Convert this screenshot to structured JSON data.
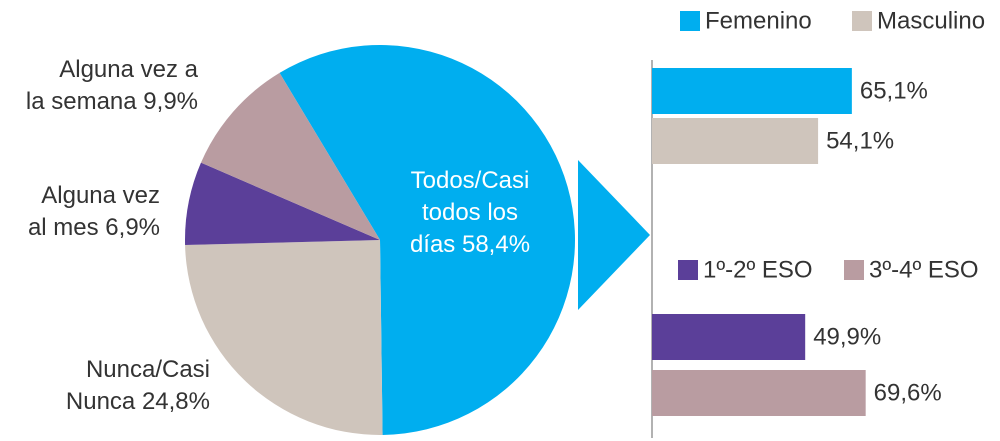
{
  "chart_data": [
    {
      "type": "pie",
      "categories": [
        "Todos/Casi todos los días",
        "Nunca/Casi Nunca",
        "Alguna vez al mes",
        "Alguna vez a la semana"
      ],
      "values": [
        58.4,
        24.8,
        6.9,
        9.9
      ],
      "value_labels": [
        "58,4%",
        "24,8%",
        "6,9%",
        "9,9%"
      ],
      "colors": [
        "#00aeef",
        "#cfc5bc",
        "#5b3f99",
        "#b99ca1"
      ]
    },
    {
      "type": "bar",
      "orientation": "horizontal",
      "xlim": [
        0,
        100
      ],
      "series": [
        {
          "name": "Femenino",
          "color": "#00aeef",
          "values": [
            65.1
          ],
          "value_labels": [
            "65,1%"
          ]
        },
        {
          "name": "Masculino",
          "color": "#cfc5bc",
          "values": [
            54.1
          ],
          "value_labels": [
            "54,1%"
          ]
        }
      ]
    },
    {
      "type": "bar",
      "orientation": "horizontal",
      "xlim": [
        0,
        100
      ],
      "series": [
        {
          "name": "1º-2º ESO",
          "color": "#5b3f99",
          "values": [
            49.9
          ],
          "value_labels": [
            "49,9%"
          ]
        },
        {
          "name": "3º-4º ESO",
          "color": "#b99ca1",
          "values": [
            69.6
          ],
          "value_labels": [
            "69,6%"
          ]
        }
      ]
    }
  ]
}
